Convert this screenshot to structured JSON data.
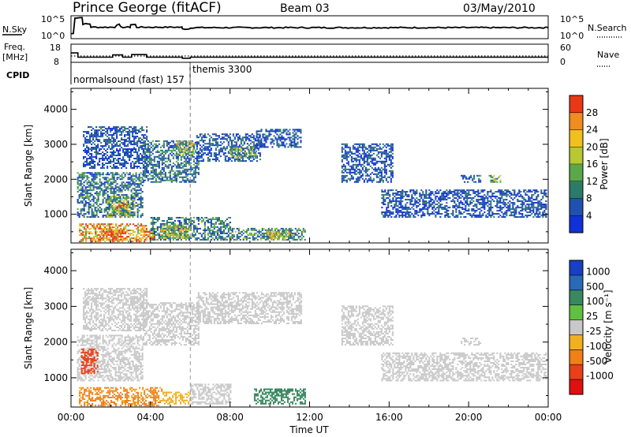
{
  "header": {
    "title": "Prince George (fitACF)",
    "beam": "Beam 03",
    "date": "03/May/2010"
  },
  "params_panel": {
    "nsky_label": "N.Sky",
    "nsky_ticks": [
      "10^5",
      "10^0"
    ],
    "nsearch_label": "N.Search",
    "nsearch_ticks": [
      "10^5",
      "10^0"
    ],
    "freq_label": [
      "Freq.",
      "[MHz]"
    ],
    "freq_ticks": [
      "18",
      "8"
    ],
    "nave_label": "Nave",
    "nave_ticks": [
      "60",
      "0"
    ],
    "cpid_label": "CPID",
    "cpid_entries": [
      "normalsound (fast) 157",
      "themis 3300"
    ],
    "freq_steps": [
      {
        "t": 0.0,
        "f": 13.2
      },
      {
        "t": 0.35,
        "f": 10.6
      },
      {
        "t": 2.1,
        "f": 12.0
      },
      {
        "t": 2.6,
        "f": 10.6
      },
      {
        "t": 3.05,
        "f": 12.2
      },
      {
        "t": 3.8,
        "f": 10.6
      },
      {
        "t": 5.6,
        "f": 10.0
      },
      {
        "t": 6.0,
        "f": 10.6
      },
      {
        "t": 24.0,
        "f": 10.6
      }
    ],
    "nave_level": 20,
    "nsky_profile": [
      {
        "t": 0.0,
        "v": 0.2
      },
      {
        "t": 0.2,
        "v": 0.95
      },
      {
        "t": 0.6,
        "v": 0.65
      },
      {
        "t": 1.0,
        "v": 0.5
      },
      {
        "t": 2.3,
        "v": 0.62
      },
      {
        "t": 2.5,
        "v": 0.5
      },
      {
        "t": 3.0,
        "v": 0.62
      },
      {
        "t": 3.3,
        "v": 0.5
      },
      {
        "t": 5.6,
        "v": 0.42
      },
      {
        "t": 6.0,
        "v": 0.48
      },
      {
        "t": 24.0,
        "v": 0.48
      }
    ]
  },
  "chart_data": [
    {
      "type": "heatmap",
      "panel": "power",
      "ylabel": "Slant Range [km]",
      "xlabel": "",
      "xlim": [
        0,
        24
      ],
      "ylim": [
        180,
        4600
      ],
      "x_ticks": [
        "00:00",
        "04:00",
        "08:00",
        "12:00",
        "16:00",
        "20:00",
        "00:00"
      ],
      "y_ticks": [
        1000,
        2000,
        3000,
        4000
      ],
      "colorbar_label": "Power [dB]",
      "colorbar_ticks": [
        "4",
        "8",
        "12",
        "16",
        "20",
        "24",
        "28"
      ],
      "colorbar_range": [
        0,
        30
      ],
      "colormap": [
        "#1030d8",
        "#2050b0",
        "#2e7a68",
        "#5aa84a",
        "#b8c832",
        "#f0c020",
        "#f08c20",
        "#e83818"
      ],
      "marker_time": 6.0,
      "regions": [
        {
          "t0": 0.4,
          "t1": 3.8,
          "r0": 200,
          "r1": 700,
          "v": 22
        },
        {
          "t0": 1.2,
          "t1": 2.6,
          "r0": 250,
          "r1": 600,
          "v": 27
        },
        {
          "t0": 3.6,
          "t1": 4.3,
          "r0": 250,
          "r1": 600,
          "v": 25
        },
        {
          "t0": 4.0,
          "t1": 8.0,
          "r0": 250,
          "r1": 900,
          "v": 9
        },
        {
          "t0": 4.5,
          "t1": 6.0,
          "r0": 300,
          "r1": 700,
          "v": 16
        },
        {
          "t0": 8.0,
          "t1": 11.8,
          "r0": 250,
          "r1": 600,
          "v": 10
        },
        {
          "t0": 9.8,
          "t1": 11.2,
          "r0": 260,
          "r1": 500,
          "v": 17
        },
        {
          "t0": 0.3,
          "t1": 3.6,
          "r0": 900,
          "r1": 2200,
          "v": 8
        },
        {
          "t0": 1.8,
          "t1": 3.2,
          "r0": 900,
          "r1": 1500,
          "v": 13
        },
        {
          "t0": 2.3,
          "t1": 2.8,
          "r0": 1100,
          "r1": 1300,
          "v": 25
        },
        {
          "t0": 0.6,
          "t1": 3.8,
          "r0": 2300,
          "r1": 3500,
          "v": 5
        },
        {
          "t0": 3.6,
          "t1": 6.4,
          "r0": 1900,
          "r1": 3100,
          "v": 8
        },
        {
          "t0": 5.3,
          "t1": 6.1,
          "r0": 2700,
          "r1": 3100,
          "v": 16
        },
        {
          "t0": 6.3,
          "t1": 9.5,
          "r0": 2500,
          "r1": 3300,
          "v": 6
        },
        {
          "t0": 8.0,
          "t1": 9.3,
          "r0": 2600,
          "r1": 2900,
          "v": 13
        },
        {
          "t0": 9.3,
          "t1": 11.6,
          "r0": 2900,
          "r1": 3400,
          "v": 5
        },
        {
          "t0": 13.6,
          "t1": 16.2,
          "r0": 1900,
          "r1": 3000,
          "v": 5
        },
        {
          "t0": 15.6,
          "t1": 23.9,
          "r0": 900,
          "r1": 1700,
          "v": 5
        },
        {
          "t0": 19.6,
          "t1": 20.6,
          "r0": 1900,
          "r1": 2100,
          "v": 6
        },
        {
          "t0": 21.0,
          "t1": 21.6,
          "r0": 1900,
          "r1": 2100,
          "v": 14
        }
      ]
    },
    {
      "type": "heatmap",
      "panel": "velocity",
      "ylabel": "Slant Range [km]",
      "xlabel": "Time UT",
      "xlim": [
        0,
        24
      ],
      "ylim": [
        180,
        4600
      ],
      "x_ticks": [
        "00:00",
        "04:00",
        "08:00",
        "12:00",
        "16:00",
        "20:00",
        "00:00"
      ],
      "y_ticks": [
        1000,
        2000,
        3000,
        4000
      ],
      "colorbar_label": "Velocity [m s⁻¹]",
      "colorbar_ticks": [
        "1000",
        "500",
        "100",
        "25",
        "-25",
        "-100",
        "-500",
        "-1000"
      ],
      "colorbar_colors": [
        "#1840c0",
        "#2a68b8",
        "#3a8860",
        "#60c040",
        "#c8c8c8",
        "#f0b020",
        "#f08018",
        "#e84018",
        "#e01010"
      ],
      "marker_time": 6.0,
      "regions": [
        {
          "t0": 0.4,
          "t1": 4.6,
          "r0": 200,
          "r1": 700,
          "v": -120
        },
        {
          "t0": 4.6,
          "t1": 6.0,
          "r0": 250,
          "r1": 600,
          "v": -60
        },
        {
          "t0": 6.0,
          "t1": 8.0,
          "r0": 250,
          "r1": 800,
          "v": 0
        },
        {
          "t0": 9.2,
          "t1": 11.8,
          "r0": 250,
          "r1": 700,
          "v": 150
        },
        {
          "t0": 0.3,
          "t1": 3.6,
          "r0": 900,
          "r1": 2200,
          "v": 0
        },
        {
          "t0": 0.5,
          "t1": 1.3,
          "r0": 1100,
          "r1": 1800,
          "v": -700
        },
        {
          "t0": 0.6,
          "t1": 3.8,
          "r0": 2300,
          "r1": 3500,
          "v": 0
        },
        {
          "t0": 3.6,
          "t1": 6.4,
          "r0": 1900,
          "r1": 3100,
          "v": 0
        },
        {
          "t0": 6.3,
          "t1": 11.6,
          "r0": 2500,
          "r1": 3400,
          "v": 0
        },
        {
          "t0": 13.6,
          "t1": 16.2,
          "r0": 1900,
          "r1": 3000,
          "v": 0
        },
        {
          "t0": 15.6,
          "t1": 23.9,
          "r0": 900,
          "r1": 1700,
          "v": 0
        },
        {
          "t0": 19.6,
          "t1": 20.6,
          "r0": 1900,
          "r1": 2100,
          "v": 0
        }
      ]
    }
  ]
}
